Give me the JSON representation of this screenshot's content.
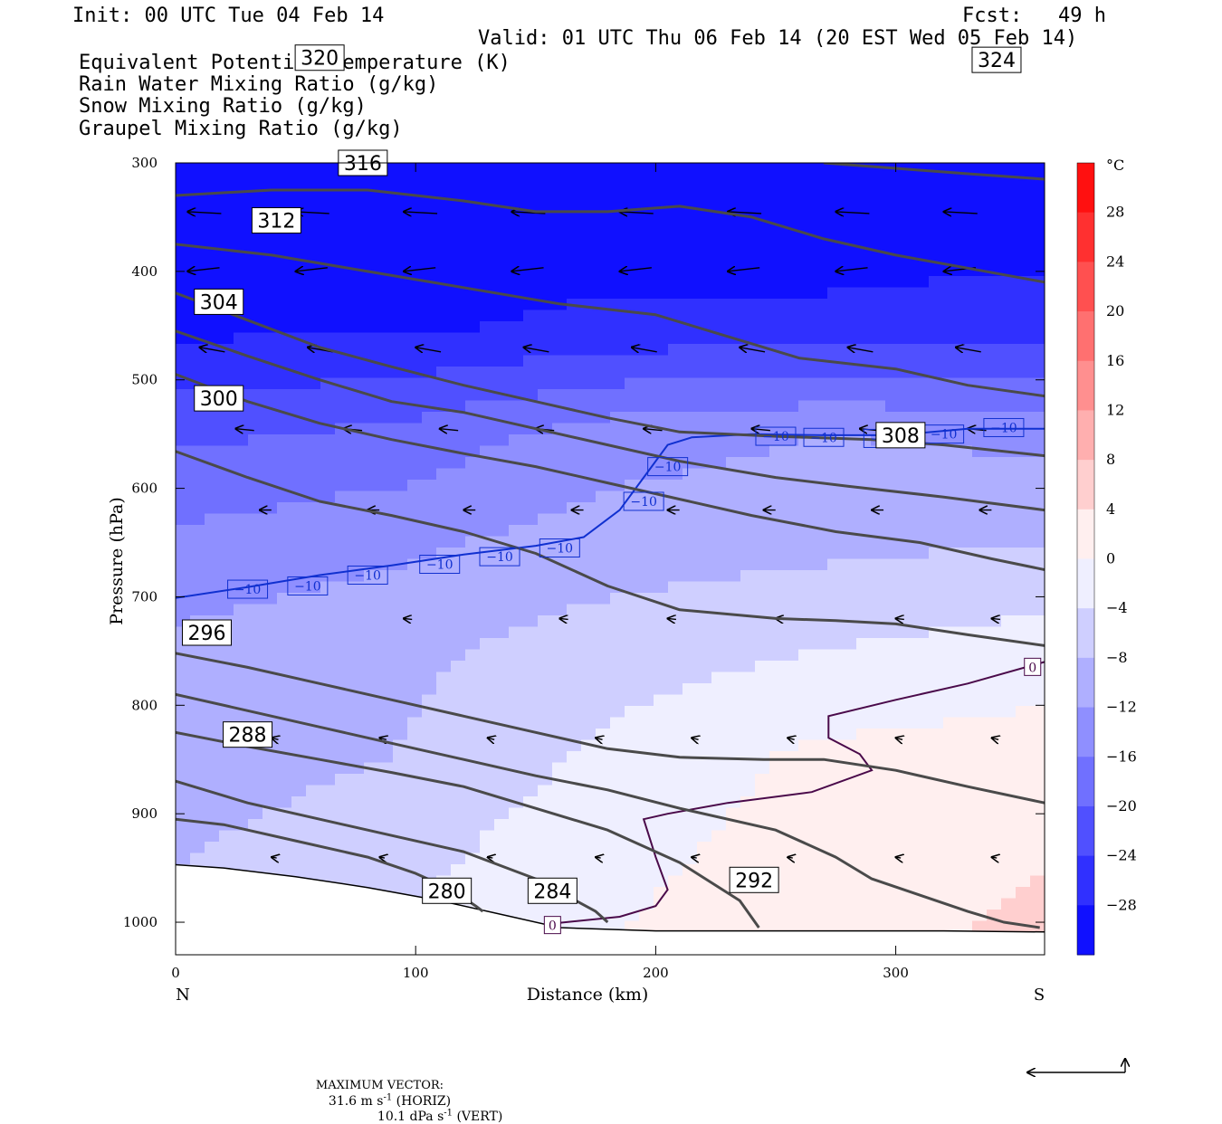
{
  "header": {
    "init": "Init: 00 UTC Tue 04 Feb 14",
    "fcst": "Fcst:   49 h",
    "valid": "Valid: 01 UTC Thu 06 Feb 14 (20 EST Wed 05 Feb 14)",
    "fields": [
      {
        "label": "Equivalent Potential Temperature (K)",
        "color": "#555555"
      },
      {
        "label": "Rain Water Mixing Ratio (g/kg)",
        "color": "#107010"
      },
      {
        "label": "Snow Mixing Ratio (g/kg)",
        "color": "#f08a50"
      },
      {
        "label": "Graupel Mixing Ratio (g/kg)",
        "color": "#f07ae0"
      }
    ]
  },
  "axes": {
    "ylabel": "Pressure (hPa)",
    "xlabel": "Distance (km)",
    "x_ticks": [
      "0",
      "100",
      "200",
      "300"
    ],
    "y_ticks": [
      "300",
      "400",
      "500",
      "600",
      "700",
      "800",
      "900",
      "1000"
    ],
    "left_end": "N",
    "right_end": "S",
    "colorbar_unit": "°C",
    "colorbar_ticks": [
      "28",
      "24",
      "20",
      "16",
      "12",
      "8",
      "4",
      "0",
      "−4",
      "−8",
      "−12",
      "−16",
      "−20",
      "−24",
      "−28"
    ]
  },
  "footer": {
    "prefix": "MAXIMUM VECTOR:",
    "horiz_value": "31.6 m s",
    "horiz_exp": "-1",
    "horiz_tag": " (HORIZ)",
    "vert_value": "10.1 dPa s",
    "vert_exp": "-1",
    "vert_tag": " (VERT)"
  },
  "chart_data": {
    "type": "cross-section contour",
    "x_range_km": [
      0,
      362
    ],
    "p_range_hPa": [
      300,
      1030
    ],
    "temperature_shading_C": {
      "colormap": "blue (cold) to red (warm)",
      "range": [
        -32,
        32
      ],
      "step": 4,
      "profiles": [
        {
          "p": 300,
          "t": [
            -32,
            -32,
            -32,
            -32,
            -32
          ]
        },
        {
          "p": 450,
          "t": [
            -29,
            -29,
            -27,
            -27,
            -26
          ]
        },
        {
          "p": 550,
          "t": [
            -21,
            -19,
            -14,
            -12,
            -13
          ]
        },
        {
          "p": 650,
          "t": [
            -15,
            -13,
            -10,
            -9,
            -8
          ]
        },
        {
          "p": 750,
          "t": [
            -11,
            -9,
            -6,
            -4,
            -2
          ]
        },
        {
          "p": 850,
          "t": [
            -10,
            -8,
            -3,
            1,
            2
          ]
        },
        {
          "p": 950,
          "t": [
            -8,
            -5,
            -1,
            2,
            4
          ]
        },
        {
          "p": 1030,
          "t": [
            -7,
            -4,
            0,
            3,
            5
          ]
        }
      ],
      "profile_x_km": [
        0,
        90,
        180,
        270,
        362
      ]
    },
    "theta_e_contours": [
      {
        "value": 280,
        "label": "280",
        "label_at": [
          113,
          971
        ],
        "points": [
          [
            0,
            905
          ],
          [
            20,
            910
          ],
          [
            50,
            925
          ],
          [
            80,
            940
          ],
          [
            100,
            955
          ],
          [
            115,
            970
          ],
          [
            125,
            985
          ],
          [
            128,
            990
          ]
        ]
      },
      {
        "value": 284,
        "label": "284",
        "label_at": [
          157,
          971
        ],
        "points": [
          [
            0,
            870
          ],
          [
            30,
            890
          ],
          [
            60,
            905
          ],
          [
            90,
            920
          ],
          [
            120,
            935
          ],
          [
            150,
            960
          ],
          [
            175,
            990
          ],
          [
            180,
            1000
          ]
        ]
      },
      {
        "value": 288,
        "label": "288",
        "label_at": [
          30,
          827
        ],
        "points": [
          [
            0,
            825
          ],
          [
            30,
            838
          ],
          [
            60,
            850
          ],
          [
            90,
            862
          ],
          [
            120,
            875
          ],
          [
            150,
            895
          ],
          [
            180,
            915
          ],
          [
            210,
            945
          ],
          [
            235,
            980
          ],
          [
            243,
            1005
          ]
        ]
      },
      {
        "value": 292,
        "label": "292",
        "label_at": [
          241,
          961
        ],
        "points": [
          [
            0,
            790
          ],
          [
            30,
            805
          ],
          [
            60,
            820
          ],
          [
            90,
            835
          ],
          [
            120,
            850
          ],
          [
            150,
            865
          ],
          [
            180,
            878
          ],
          [
            210,
            895
          ],
          [
            250,
            915
          ],
          [
            275,
            940
          ],
          [
            290,
            960
          ],
          [
            310,
            975
          ],
          [
            330,
            990
          ],
          [
            345,
            1000
          ],
          [
            360,
            1005
          ]
        ]
      },
      {
        "value": 296,
        "label": "296",
        "label_at": [
          13,
          733
        ],
        "points": [
          [
            0,
            752
          ],
          [
            30,
            765
          ],
          [
            60,
            780
          ],
          [
            90,
            795
          ],
          [
            120,
            810
          ],
          [
            150,
            825
          ],
          [
            180,
            840
          ],
          [
            210,
            848
          ],
          [
            245,
            850
          ],
          [
            270,
            850
          ],
          [
            300,
            860
          ],
          [
            330,
            875
          ],
          [
            362,
            890
          ]
        ]
      },
      {
        "value": 300,
        "label": "300",
        "label_at": [
          18,
          517
        ],
        "points": [
          [
            0,
            566
          ],
          [
            30,
            590
          ],
          [
            60,
            612
          ],
          [
            90,
            625
          ],
          [
            120,
            640
          ],
          [
            150,
            660
          ],
          [
            180,
            690
          ],
          [
            210,
            712
          ],
          [
            250,
            720
          ],
          [
            275,
            722
          ],
          [
            300,
            725
          ],
          [
            330,
            735
          ],
          [
            362,
            745
          ]
        ]
      },
      {
        "value": 304,
        "label": "304",
        "label_at": [
          18,
          428
        ],
        "points": [
          [
            0,
            495
          ],
          [
            30,
            520
          ],
          [
            60,
            540
          ],
          [
            90,
            555
          ],
          [
            120,
            568
          ],
          [
            150,
            580
          ],
          [
            180,
            595
          ],
          [
            210,
            610
          ],
          [
            240,
            625
          ],
          [
            275,
            640
          ],
          [
            310,
            650
          ],
          [
            340,
            665
          ],
          [
            362,
            675
          ]
        ]
      },
      {
        "value": 308,
        "label": "308",
        "label_at": [
          302,
          551
        ],
        "points": [
          [
            0,
            455
          ],
          [
            30,
            478
          ],
          [
            60,
            500
          ],
          [
            90,
            520
          ],
          [
            120,
            530
          ],
          [
            150,
            545
          ],
          [
            180,
            560
          ],
          [
            210,
            575
          ],
          [
            250,
            590
          ],
          [
            280,
            598
          ],
          [
            320,
            608
          ],
          [
            362,
            620
          ]
        ]
      },
      {
        "value": 312,
        "label": "312",
        "label_at": [
          42,
          353
        ],
        "points": [
          [
            0,
            420
          ],
          [
            30,
            445
          ],
          [
            60,
            470
          ],
          [
            90,
            488
          ],
          [
            120,
            505
          ],
          [
            150,
            520
          ],
          [
            180,
            535
          ],
          [
            210,
            548
          ],
          [
            250,
            552
          ],
          [
            290,
            555
          ],
          [
            320,
            560
          ],
          [
            362,
            570
          ]
        ]
      },
      {
        "value": 316,
        "label": "316",
        "label_at": [
          78,
          300
        ],
        "points": [
          [
            0,
            375
          ],
          [
            40,
            385
          ],
          [
            80,
            400
          ],
          [
            120,
            415
          ],
          [
            160,
            430
          ],
          [
            200,
            440
          ],
          [
            230,
            460
          ],
          [
            260,
            480
          ],
          [
            300,
            490
          ],
          [
            330,
            505
          ],
          [
            362,
            515
          ]
        ]
      },
      {
        "value": 320,
        "label": "320",
        "label_at": [
          60,
          203
        ],
        "points": [
          [
            0,
            330
          ],
          [
            40,
            325
          ],
          [
            80,
            325
          ],
          [
            120,
            335
          ],
          [
            150,
            345
          ],
          [
            180,
            345
          ],
          [
            210,
            340
          ],
          [
            240,
            350
          ],
          [
            270,
            370
          ],
          [
            300,
            385
          ],
          [
            330,
            397
          ],
          [
            362,
            410
          ]
        ]
      },
      {
        "value": 324,
        "label": "324",
        "label_at": [
          342,
          205
        ],
        "points": [
          [
            270,
            300
          ],
          [
            300,
            305
          ],
          [
            330,
            310
          ],
          [
            362,
            315
          ]
        ]
      }
    ],
    "isotherm_minus10": {
      "value": -10,
      "labels": [
        "−10",
        "−10",
        "−10",
        "−10",
        "−10",
        "−10",
        "−10",
        "−10",
        "−10",
        "−10",
        "−10",
        "−10",
        "−10",
        "−10",
        "−10"
      ],
      "points": [
        [
          0,
          701
        ],
        [
          30,
          691
        ],
        [
          60,
          680
        ],
        [
          90,
          671
        ],
        [
          120,
          661
        ],
        [
          150,
          653
        ],
        [
          170,
          645
        ],
        [
          185,
          620
        ],
        [
          195,
          590
        ],
        [
          205,
          560
        ],
        [
          215,
          553
        ],
        [
          240,
          550
        ],
        [
          270,
          551
        ],
        [
          300,
          551
        ],
        [
          330,
          545
        ],
        [
          362,
          545
        ]
      ]
    },
    "isotherm_zero": {
      "value": 0,
      "label": "0",
      "segments": [
        [
          [
            158,
            1001
          ],
          [
            185,
            995
          ],
          [
            200,
            985
          ],
          [
            205,
            970
          ],
          [
            200,
            940
          ],
          [
            195,
            905
          ],
          [
            205,
            900
          ],
          [
            230,
            890
          ],
          [
            265,
            880
          ],
          [
            290,
            860
          ],
          [
            285,
            845
          ],
          [
            272,
            830
          ],
          [
            272,
            810
          ],
          [
            300,
            795
          ],
          [
            330,
            780
          ],
          [
            362,
            760
          ]
        ]
      ]
    },
    "ground_surface": [
      [
        0,
        947
      ],
      [
        20,
        950
      ],
      [
        50,
        958
      ],
      [
        80,
        968
      ],
      [
        110,
        980
      ],
      [
        140,
        995
      ],
      [
        160,
        1005
      ],
      [
        200,
        1008
      ],
      [
        260,
        1008
      ],
      [
        320,
        1008
      ],
      [
        362,
        1009
      ]
    ]
  }
}
